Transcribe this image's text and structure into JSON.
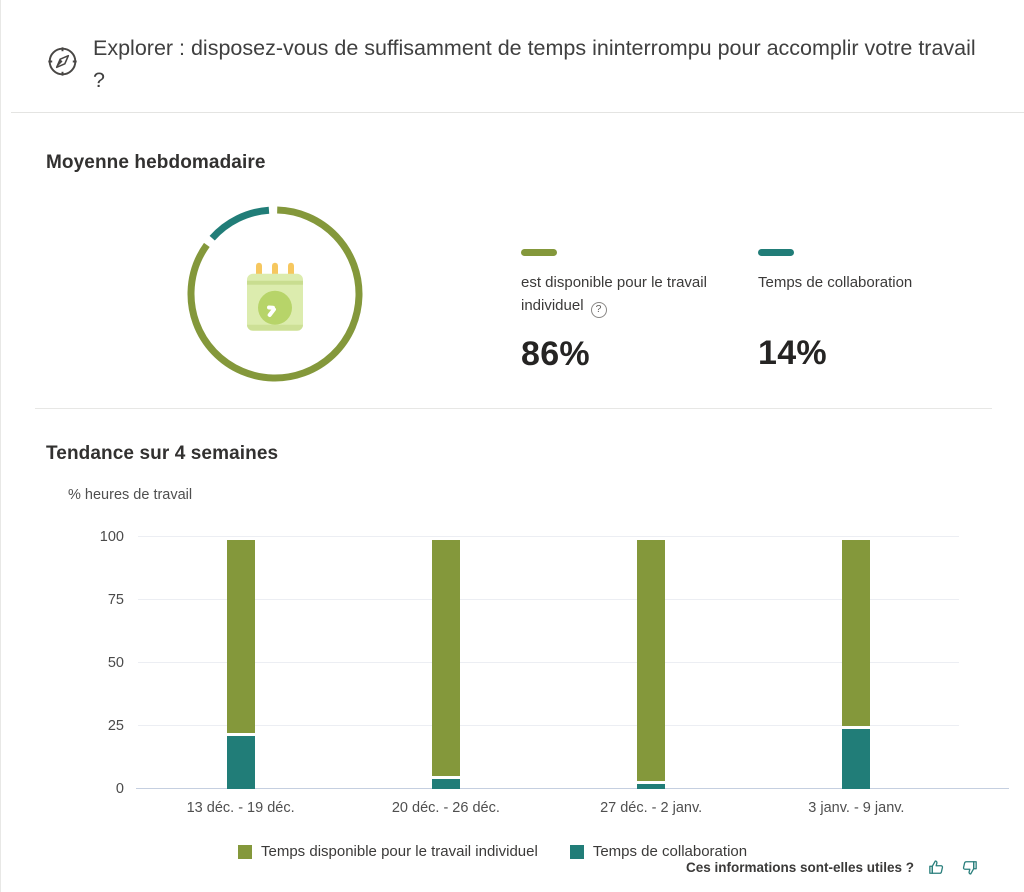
{
  "header": {
    "title": "Explorer : disposez-vous de suffisamment de temps ininterrompu pour accomplir votre travail ?",
    "icon": "compass-icon"
  },
  "colors": {
    "individual": "#84983b",
    "collaboration": "#217d78",
    "feedback_icon": "#2a7f7c"
  },
  "weekly_average": {
    "heading": "Moyenne hebdomadaire",
    "stats": [
      {
        "label": "est disponible pour le travail individuel",
        "value": "86%",
        "color": "#84983b",
        "help_icon": "?"
      },
      {
        "label": "Temps de collaboration",
        "value": "14%",
        "color": "#217d78"
      }
    ]
  },
  "trend": {
    "heading": "Tendance sur 4 semaines"
  },
  "chart_data": [
    {
      "type": "pie",
      "donut": true,
      "title": "Moyenne hebdomadaire",
      "labels": [
        "est disponible pour le travail individuel",
        "Temps de collaboration"
      ],
      "values": [
        86,
        14
      ],
      "colors": [
        "#84983b",
        "#217d78"
      ],
      "center_icon": "calendar-clock-icon"
    },
    {
      "type": "bar",
      "stacked": true,
      "title": "Tendance sur 4 semaines",
      "ylabel": "% heures de travail",
      "ylim": [
        0,
        100
      ],
      "yticks": [
        0,
        25,
        50,
        75,
        100
      ],
      "grid": true,
      "legend_position": "bottom",
      "categories": [
        "13 déc. - 19 déc.",
        "20 déc. - 26 déc.",
        "27 déc. - 2 janv.",
        "3 janv. - 9 janv."
      ],
      "series": [
        {
          "name": "Temps disponible pour le travail individuel",
          "color": "#84983b",
          "values": [
            78,
            95,
            97,
            75
          ]
        },
        {
          "name": "Temps de collaboration",
          "color": "#217d78",
          "values": [
            21,
            4,
            2,
            24
          ]
        }
      ]
    }
  ],
  "feedback": {
    "question": "Ces informations sont-elles utiles ?",
    "icons": [
      "thumbs-up-icon",
      "thumbs-down-icon"
    ]
  }
}
